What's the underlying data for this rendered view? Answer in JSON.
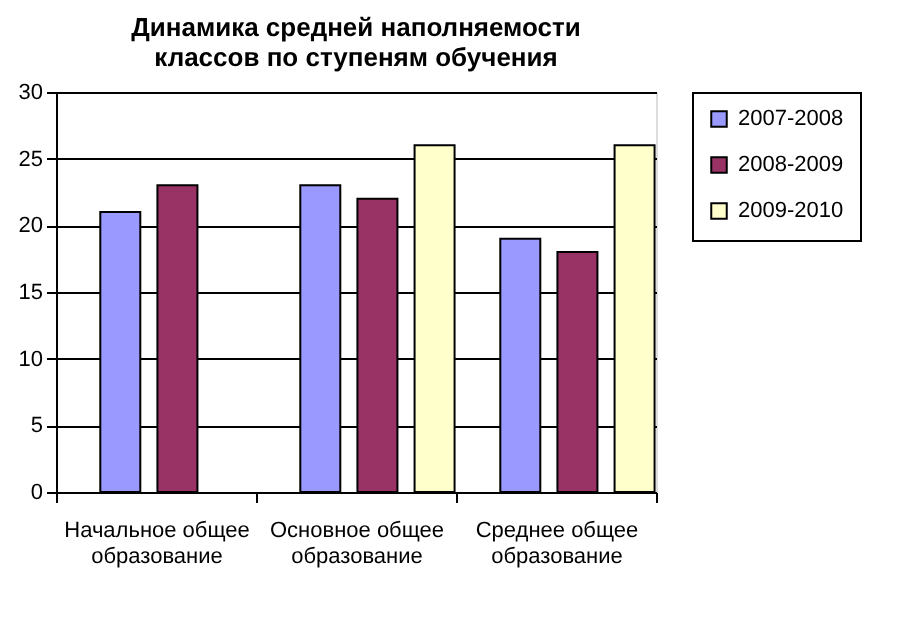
{
  "chart_data": {
    "type": "bar",
    "title": "Динамика средней наполняемости\nклассов  по ступеням обучения",
    "categories": [
      "Начальное общее образование",
      "Основное общее образование",
      "Среднее общее образование"
    ],
    "series": [
      {
        "name": "2007-2008",
        "color": "#9999ff",
        "values": [
          21,
          23,
          19
        ]
      },
      {
        "name": "2008-2009",
        "color": "#993366",
        "values": [
          23,
          22,
          18
        ]
      },
      {
        "name": "2009-2010",
        "color": "#ffffcc",
        "values": [
          null,
          26,
          26
        ]
      }
    ],
    "ylim": [
      0,
      30
    ],
    "yticks": [
      0,
      5,
      10,
      15,
      20,
      25,
      30
    ],
    "grid": "y",
    "legend": "right"
  }
}
